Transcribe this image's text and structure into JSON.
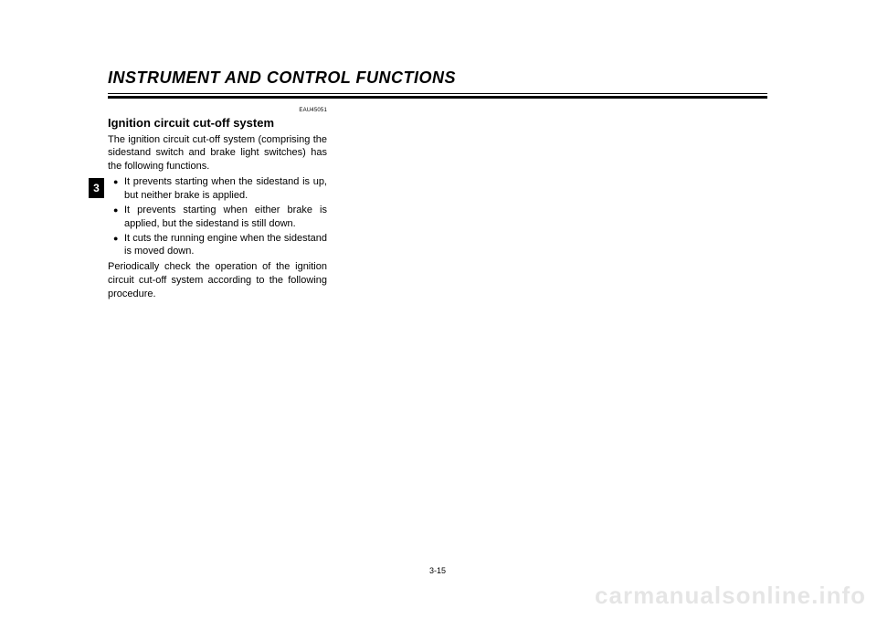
{
  "header": {
    "title": "INSTRUMENT AND CONTROL FUNCTIONS"
  },
  "tab": {
    "label": "3"
  },
  "content": {
    "doc_code": "EAU45051",
    "heading": "Ignition circuit cut-off system",
    "intro": "The ignition circuit cut-off system (comprising the sidestand switch and brake light switches) has the following functions.",
    "bullets": [
      "It prevents starting when the sidestand is up, but neither brake is applied.",
      "It prevents starting when either brake is applied, but the sidestand is still down.",
      "It cuts the running engine when the sidestand is moved down."
    ],
    "outro": "Periodically check the operation of the ignition circuit cut-off system according to the following procedure."
  },
  "footer": {
    "page_number": "3-15"
  },
  "watermark": "carmanualsonline.info",
  "colors": {
    "text": "#000000",
    "background": "#ffffff",
    "tab_bg": "#000000",
    "tab_text": "#ffffff",
    "watermark": "rgba(0,0,0,0.10)"
  }
}
